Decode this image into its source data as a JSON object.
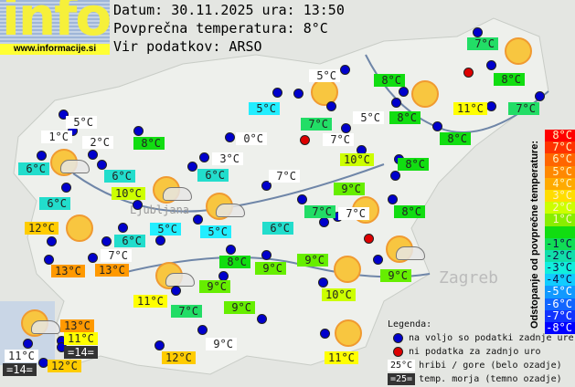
{
  "header": {
    "logo_text": "info",
    "logo_url": "www.informacije.si",
    "date_line": "Datum: 30.11.2025 ura: 13:50",
    "avg_line": "Povprečna temperatura: 8°C",
    "source_line": "Vir podatkov: ARSO"
  },
  "stations": [
    {
      "t": "5°C",
      "c": "#ffffff"
    },
    {
      "t": "1°C",
      "c": "#ffffff"
    },
    {
      "t": "2°C",
      "c": "#ffffff"
    },
    {
      "t": "8°C",
      "c": "#11dd11"
    },
    {
      "t": "0°C",
      "c": "#ffffff"
    },
    {
      "t": "6°C",
      "c": "#22ddcc"
    },
    {
      "t": "3°C",
      "c": "#ffffff"
    },
    {
      "t": "6°C",
      "c": "#22ddcc"
    },
    {
      "t": "6°C",
      "c": "#22ddcc"
    },
    {
      "t": "7°C",
      "c": "#ffffff"
    },
    {
      "t": "10°C",
      "c": "#ccff00"
    },
    {
      "t": "6°C",
      "c": "#22ddcc"
    },
    {
      "t": "12°C",
      "c": "#ffcc00"
    },
    {
      "t": "5°C",
      "c": "#22eeff"
    },
    {
      "t": "5°C",
      "c": "#22eeff"
    },
    {
      "t": "6°C",
      "c": "#22ddcc"
    },
    {
      "t": "6°C",
      "c": "#22ddcc"
    },
    {
      "t": "7°C",
      "c": "#ffffff"
    },
    {
      "t": "13°C",
      "c": "#ff9900"
    },
    {
      "t": "13°C",
      "c": "#ff9900"
    },
    {
      "t": "8°C",
      "c": "#11dd11"
    },
    {
      "t": "9°C",
      "c": "#66ee00"
    },
    {
      "t": "9°C",
      "c": "#66ee00"
    },
    {
      "t": "11°C",
      "c": "#ffff00"
    },
    {
      "t": "7°C",
      "c": "#22dd66"
    },
    {
      "t": "9°C",
      "c": "#66ee00"
    },
    {
      "t": "9°C",
      "c": "#ffffff"
    },
    {
      "t": "12°C",
      "c": "#ffcc00"
    },
    {
      "t": "13°C",
      "c": "#ff9900"
    },
    {
      "t": "11°C",
      "c": "#ffff00"
    },
    {
      "t": "=14=",
      "c": "#333333"
    },
    {
      "t": "11°C",
      "c": "#ffffff"
    },
    {
      "t": "=14=",
      "c": "#333333"
    },
    {
      "t": "12°C",
      "c": "#ffcc00"
    },
    {
      "t": "7°C",
      "c": "#22dd66"
    },
    {
      "t": "5°C",
      "c": "#ffffff"
    },
    {
      "t": "8°C",
      "c": "#11dd11"
    },
    {
      "t": "8°C",
      "c": "#11dd11"
    },
    {
      "t": "7°C",
      "c": "#22dd66"
    },
    {
      "t": "5°C",
      "c": "#ffffff"
    },
    {
      "t": "8°C",
      "c": "#11dd11"
    },
    {
      "t": "11°C",
      "c": "#ffff00"
    },
    {
      "t": "7°C",
      "c": "#22dd66"
    },
    {
      "t": "5°C",
      "c": "#22eeff"
    },
    {
      "t": "7°C",
      "c": "#ffffff"
    },
    {
      "t": "8°C",
      "c": "#11dd11"
    },
    {
      "t": "10°C",
      "c": "#ccff00"
    },
    {
      "t": "8°C",
      "c": "#11dd11"
    },
    {
      "t": "9°C",
      "c": "#66ee00"
    },
    {
      "t": "7°C",
      "c": "#22dd66"
    },
    {
      "t": "7°C",
      "c": "#ffffff"
    },
    {
      "t": "8°C",
      "c": "#11dd11"
    },
    {
      "t": "9°C",
      "c": "#66ee00"
    },
    {
      "t": "9°C",
      "c": "#66ee00"
    },
    {
      "t": "10°C",
      "c": "#ccff00"
    },
    {
      "t": "11°C",
      "c": "#ffff00"
    }
  ],
  "scale": {
    "title": "Odstopanje od povprečne temperature:",
    "steps": [
      {
        "t": "8°C",
        "c": "#ff0000"
      },
      {
        "t": "7°C",
        "c": "#ff3300"
      },
      {
        "t": "6°C",
        "c": "#ff6600"
      },
      {
        "t": "5°C",
        "c": "#ff8800"
      },
      {
        "t": "4°C",
        "c": "#ffaa00"
      },
      {
        "t": "3°C",
        "c": "#ffdd00"
      },
      {
        "t": "2°C",
        "c": "#ccff00"
      },
      {
        "t": "1°C",
        "c": "#88ee00"
      },
      {
        "t": "",
        "c": "#11dd11"
      },
      {
        "t": "-1°C",
        "c": "#11dd55"
      },
      {
        "t": "-2°C",
        "c": "#11ddaa"
      },
      {
        "t": "-3°C",
        "c": "#11eedd"
      },
      {
        "t": "-4°C",
        "c": "#11ccff"
      },
      {
        "t": "-5°C",
        "c": "#1199ff"
      },
      {
        "t": "-6°C",
        "c": "#1166ff"
      },
      {
        "t": "-7°C",
        "c": "#1133ff"
      },
      {
        "t": "-8°C",
        "c": "#0000ff"
      }
    ]
  },
  "legend": {
    "title": "Legenda:",
    "blue": "na voljo so podatki zadnje ure",
    "red": "ni podatka za zadnjo uro",
    "mountain_sample": "25°C",
    "mountain": "hribi / gore (belo ozadje)",
    "sea_sample": "=25=",
    "sea": "temp. morja (temno ozadje)",
    "colors": {
      "ok": "#0000cc",
      "missing": "#dd0000"
    }
  },
  "map_labels": {
    "ljubljana": "Ljubljana",
    "zagreb": "Zagreb"
  }
}
